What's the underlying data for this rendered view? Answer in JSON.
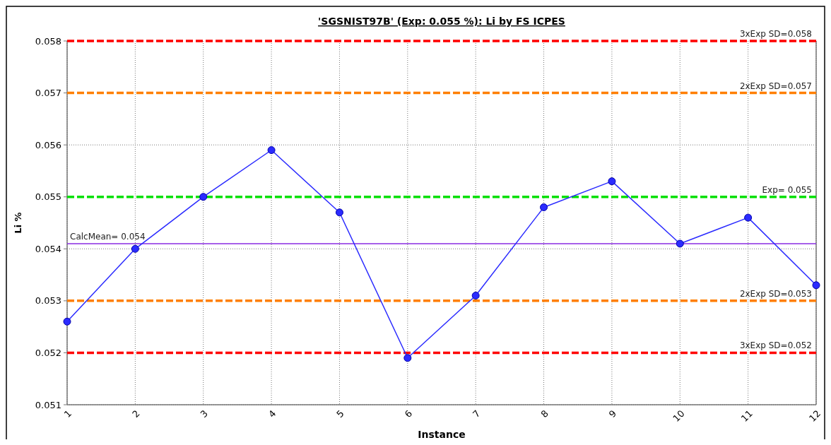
{
  "chart_data": {
    "type": "line",
    "title": "'SGSNIST97B' (Exp: 0.055 %): Li by FS ICPES",
    "xlabel": "Instance",
    "ylabel": "Li %",
    "categories": [
      "1",
      "2",
      "3",
      "4",
      "5",
      "6",
      "7",
      "8",
      "9",
      "10",
      "11",
      "12"
    ],
    "series": [
      {
        "color": "#2b2bff",
        "values": [
          0.0526,
          0.054,
          0.055,
          0.0559,
          0.0547,
          0.0519,
          0.0531,
          0.0548,
          0.0553,
          0.0541,
          0.0546,
          0.0533
        ]
      }
    ],
    "ylim": [
      0.051,
      0.058
    ],
    "yticks": [
      0.051,
      0.052,
      0.053,
      0.054,
      0.055,
      0.056,
      0.057,
      0.058
    ],
    "grid": true,
    "marker": "circle",
    "line_style": "solid",
    "ref_lines": [
      {
        "axis": "y",
        "value": 0.058,
        "label": "3xExp SD=0.058",
        "color": "#ff0000",
        "line_style": "dashed"
      },
      {
        "axis": "y",
        "value": 0.057,
        "label": "2xExp SD=0.057",
        "color": "#ff7f00",
        "line_style": "dashed"
      },
      {
        "axis": "y",
        "value": 0.055,
        "label": "Exp= 0.055",
        "color": "#00e000",
        "line_style": "dashed"
      },
      {
        "axis": "y",
        "value": 0.0541,
        "label": "CalcMean= 0.054",
        "color": "#8a2be2",
        "line_style": "solid"
      },
      {
        "axis": "y",
        "value": 0.053,
        "label": "2xExp SD=0.053",
        "color": "#ff7f00",
        "line_style": "dashed"
      },
      {
        "axis": "y",
        "value": 0.052,
        "label": "3xExp SD=0.052",
        "color": "#ff0000",
        "line_style": "dashed"
      }
    ]
  }
}
